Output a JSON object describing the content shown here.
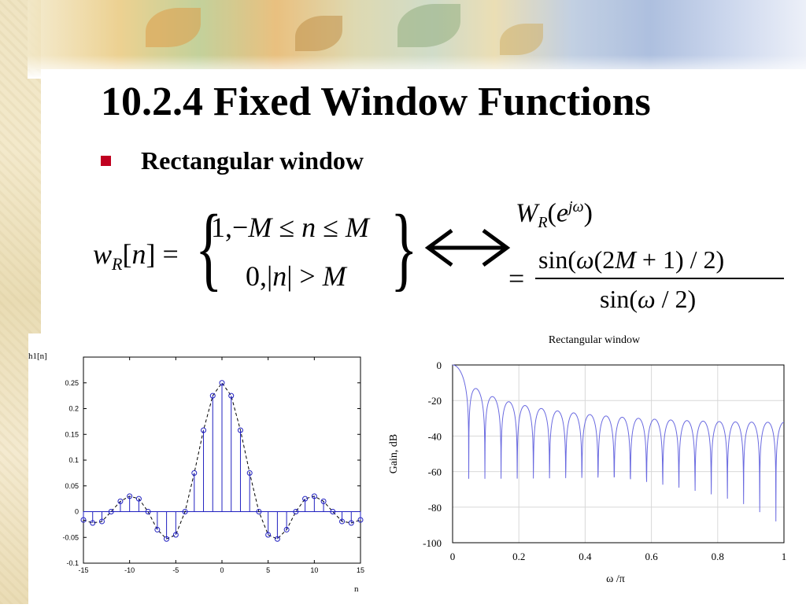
{
  "slide": {
    "title": "10.2.4 Fixed Window Functions",
    "bullet": "Rectangular window"
  },
  "equation": {
    "lhs": "w_R[n] =",
    "case1": "1, −M ≤ n ≤ M",
    "case2": "0, |n| > M",
    "arrow": "⟷",
    "rhs_label": "W_R(e^{jω})",
    "rhs_numerator": "sin(ω(2M + 1) / 2)",
    "rhs_denominator": "sin(ω / 2)",
    "equals": "="
  },
  "chart_data": [
    {
      "type": "scatter",
      "ylabel": "h1[n]",
      "xlabel": "n",
      "xlim": [
        -15,
        15
      ],
      "ylim": [
        -0.1,
        0.3
      ],
      "x_ticks": [
        "-15",
        "-10",
        "-5",
        "0",
        "5",
        "10",
        "15"
      ],
      "y_ticks": [
        "-0.1",
        "-0.05",
        "0",
        "0.05",
        "0.1",
        "0.15",
        "0.2",
        "0.25"
      ],
      "grid": false,
      "style": "stem with dashed envelope",
      "x": [
        -15,
        -14,
        -13,
        -12,
        -11,
        -10,
        -9,
        -8,
        -7,
        -6,
        -5,
        -4,
        -3,
        -2,
        -1,
        0,
        1,
        2,
        3,
        4,
        5,
        6,
        7,
        8,
        9,
        10,
        11,
        12,
        13,
        14,
        15
      ],
      "y": [
        -0.016,
        -0.022,
        -0.019,
        0.0,
        0.02,
        0.03,
        0.025,
        0.0,
        -0.035,
        -0.053,
        -0.045,
        0.0,
        0.075,
        0.158,
        0.225,
        0.25,
        0.225,
        0.158,
        0.075,
        0.0,
        -0.045,
        -0.053,
        -0.035,
        0.0,
        0.025,
        0.03,
        0.02,
        0.0,
        -0.019,
        -0.022,
        -0.016
      ],
      "colors": {
        "stem": "#2020c0",
        "marker": "#2020c0",
        "envelope": "#000000"
      }
    },
    {
      "type": "line",
      "title": "Rectangular window",
      "xlabel": "ω /π",
      "ylabel": "Gain, dB",
      "xlim": [
        0,
        1
      ],
      "ylim": [
        -100,
        0
      ],
      "x_ticks": [
        "0",
        "0.2",
        "0.4",
        "0.6",
        "0.8",
        "1"
      ],
      "y_ticks": [
        "0",
        "-20",
        "-40",
        "-60",
        "-80",
        "-100"
      ],
      "grid": true,
      "color": "#6a6ae0",
      "series": [
        {
          "description": "20·log10 |W_R(e^{jω})| normalized, M = 20 (2M+1 = 41)",
          "parameters": {
            "M": 20
          },
          "x_range": [
            0,
            1
          ],
          "y_floor": -100
        }
      ]
    }
  ]
}
